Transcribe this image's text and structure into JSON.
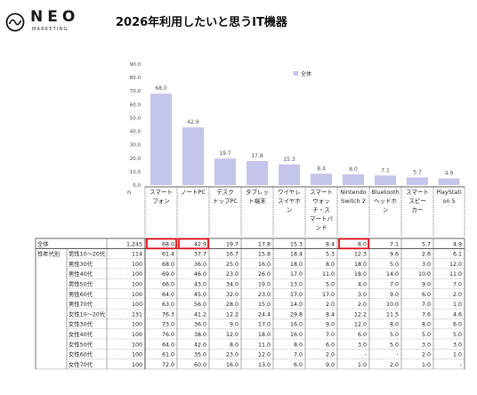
{
  "brand": {
    "name": "NEO",
    "sub": "MARKETING"
  },
  "chart_data": {
    "type": "bar",
    "title": "2026年利用したいと思うIT機器",
    "legend": [
      "全体"
    ],
    "ylim": [
      0,
      90
    ],
    "yticks": [
      "0.0",
      "10.0",
      "20.0",
      "30.0",
      "40.0",
      "50.0",
      "60.0",
      "70.0",
      "80.0",
      "90.0"
    ],
    "n_label": "n",
    "categories": [
      [
        "スマート",
        "フォン"
      ],
      [
        "ノートPC"
      ],
      [
        "デスク",
        "トップPC"
      ],
      [
        "タブレッ",
        "ト端末"
      ],
      [
        "ワイヤレ",
        "スイヤホ",
        "ン"
      ],
      [
        "スマート",
        "ウォッ",
        "チ・ス",
        "マートバ",
        "ンド"
      ],
      [
        "Nintendo",
        "Switch 2"
      ],
      [
        "Bluetooth",
        "ヘッドホ",
        "ン"
      ],
      [
        "スマート",
        "スピー",
        "カー"
      ],
      [
        "PlayStati",
        "on 5"
      ]
    ],
    "series": [
      {
        "name": "全体",
        "values": [
          68.0,
          42.9,
          19.7,
          17.8,
          15.3,
          8.4,
          8.0,
          7.1,
          5.7,
          4.9
        ]
      }
    ],
    "table": {
      "group_label": "性年代別",
      "rows": [
        {
          "label": "全体",
          "n": "1,245",
          "values": [
            "68.0",
            "42.9",
            "19.7",
            "17.8",
            "15.3",
            "8.4",
            "8.0",
            "7.1",
            "5.7",
            "4.9"
          ]
        },
        {
          "label": "男性10～20代",
          "n": "114",
          "values": [
            "61.4",
            "37.7",
            "16.7",
            "15.8",
            "18.4",
            "5.3",
            "12.3",
            "9.6",
            "2.6",
            "6.1"
          ]
        },
        {
          "label": "男性30代",
          "n": "100",
          "values": [
            "68.0",
            "36.0",
            "25.0",
            "16.0",
            "18.0",
            "8.0",
            "18.0",
            "5.0",
            "3.0",
            "12.0"
          ]
        },
        {
          "label": "男性40代",
          "n": "100",
          "values": [
            "69.0",
            "46.0",
            "23.0",
            "26.0",
            "17.0",
            "11.0",
            "18.0",
            "14.0",
            "10.0",
            "11.0"
          ]
        },
        {
          "label": "男性50代",
          "n": "100",
          "values": [
            "66.0",
            "43.0",
            "34.0",
            "19.0",
            "13.0",
            "5.0",
            "4.0",
            "7.0",
            "9.0",
            "7.0"
          ]
        },
        {
          "label": "男性60代",
          "n": "100",
          "values": [
            "64.0",
            "45.0",
            "32.0",
            "23.0",
            "17.0",
            "17.0",
            "3.0",
            "9.0",
            "6.0",
            "2.0"
          ]
        },
        {
          "label": "男性70代",
          "n": "100",
          "values": [
            "63.0",
            "56.0",
            "28.0",
            "15.0",
            "14.0",
            "2.0",
            "2.0",
            "10.0",
            "7.0",
            "1.0"
          ]
        },
        {
          "label": "女性10～20代",
          "n": "131",
          "values": [
            "76.3",
            "41.2",
            "12.2",
            "24.4",
            "29.8",
            "8.4",
            "12.2",
            "11.5",
            "7.6",
            "4.6"
          ]
        },
        {
          "label": "女性30代",
          "n": "100",
          "values": [
            "73.0",
            "36.0",
            "9.0",
            "17.0",
            "16.0",
            "9.0",
            "12.0",
            "8.0",
            "8.0",
            "6.0"
          ]
        },
        {
          "label": "女性40代",
          "n": "100",
          "values": [
            "76.0",
            "38.0",
            "12.0",
            "18.0",
            "16.0",
            "7.0",
            "6.0",
            "5.0",
            "5.0",
            "5.0"
          ]
        },
        {
          "label": "女性50代",
          "n": "100",
          "values": [
            "64.0",
            "42.0",
            "8.0",
            "11.0",
            "8.0",
            "6.0",
            "3.0",
            "5.0",
            "3.0",
            "3.0"
          ]
        },
        {
          "label": "女性60代",
          "n": "100",
          "values": [
            "61.0",
            "35.0",
            "23.0",
            "12.0",
            "7.0",
            "2.0",
            "-",
            "-",
            "2.0",
            "1.0"
          ]
        },
        {
          "label": "女性70代",
          "n": "100",
          "values": [
            "72.0",
            "60.0",
            "16.0",
            "13.0",
            "6.0",
            "9.0",
            "1.0",
            "2.0",
            "1.0",
            "-"
          ]
        }
      ],
      "highlighted": [
        [
          0,
          0
        ],
        [
          0,
          1
        ],
        [
          0,
          6
        ]
      ]
    },
    "colors": {
      "bar": "#c3c5ea",
      "highlight": "#e0141b",
      "grid": "#555555"
    }
  }
}
